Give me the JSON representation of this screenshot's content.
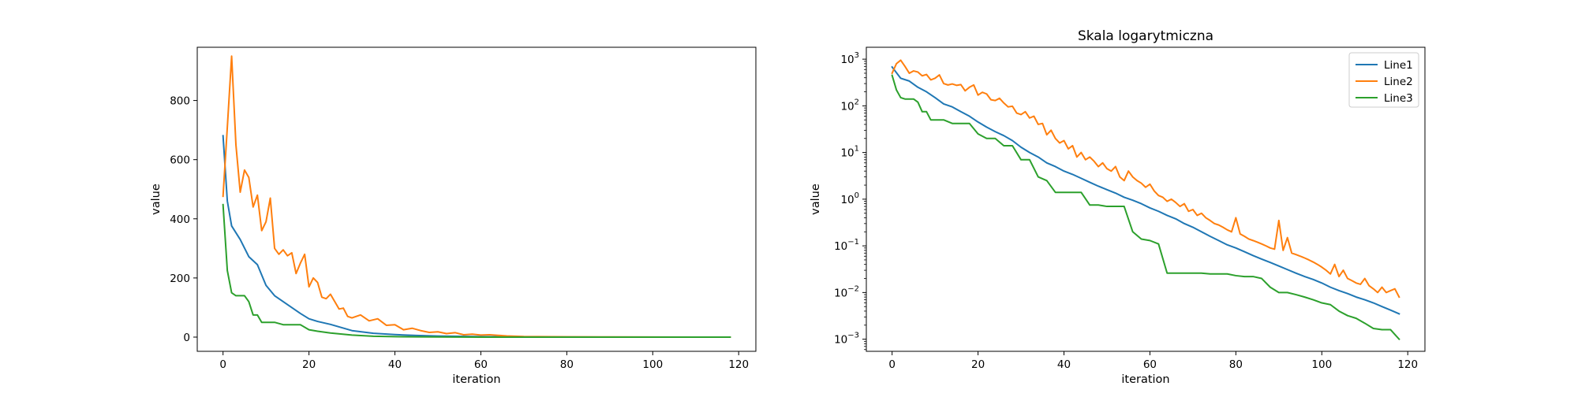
{
  "chart_data": [
    {
      "type": "line",
      "title": "",
      "xlabel": "iteration",
      "ylabel": "value",
      "xlim": [
        -6,
        124
      ],
      "ylim": [
        -48,
        980
      ],
      "xticks": [
        0,
        20,
        40,
        60,
        80,
        100,
        120
      ],
      "yticks": [
        0,
        200,
        400,
        600,
        800
      ],
      "yscale": "linear",
      "grid": false,
      "legend": false,
      "series": [
        {
          "name": "Line1",
          "color": "#1f77b4",
          "x": [
            0,
            1,
            2,
            4,
            6,
            8,
            10,
            12,
            14,
            16,
            18,
            20,
            22,
            25,
            30,
            35,
            40,
            45,
            50,
            55,
            60,
            70,
            80,
            90,
            100,
            110,
            118
          ],
          "y": [
            681,
            460,
            376,
            330,
            272,
            245,
            175,
            140,
            120,
            100,
            80,
            62,
            53,
            43,
            22,
            13,
            8.5,
            5.5,
            3.5,
            2.5,
            1.5,
            0.5,
            0.15,
            0.05,
            0.02,
            0.008,
            0.004
          ]
        },
        {
          "name": "Line2",
          "color": "#ff7f0e",
          "x": [
            0,
            1,
            2,
            3,
            4,
            5,
            6,
            7,
            8,
            9,
            10,
            11,
            12,
            13,
            14,
            15,
            16,
            17,
            18,
            19,
            20,
            21,
            22,
            23,
            24,
            25,
            26,
            27,
            28,
            29,
            30,
            32,
            34,
            36,
            38,
            40,
            42,
            44,
            46,
            48,
            50,
            52,
            54,
            56,
            58,
            60,
            62,
            64,
            66,
            70,
            80,
            90,
            100,
            110,
            118
          ],
          "y": [
            476,
            710,
            950,
            650,
            490,
            565,
            540,
            440,
            480,
            360,
            390,
            470,
            300,
            280,
            295,
            275,
            285,
            215,
            250,
            280,
            170,
            200,
            185,
            135,
            130,
            145,
            120,
            95,
            98,
            70,
            65,
            75,
            55,
            62,
            40,
            42,
            25,
            30,
            22,
            16,
            18,
            12,
            15,
            8,
            10,
            7,
            8,
            6,
            4,
            2,
            1,
            0.5,
            0.2,
            0.05,
            0.008
          ]
        },
        {
          "name": "Line3",
          "color": "#2ca02c",
          "x": [
            0,
            1,
            2,
            3,
            4,
            5,
            6,
            7,
            8,
            9,
            10,
            12,
            14,
            16,
            18,
            20,
            22,
            25,
            30,
            35,
            40,
            45,
            50,
            55,
            60,
            62,
            70,
            80,
            90,
            100,
            110,
            118
          ],
          "y": [
            448,
            225,
            150,
            140,
            140,
            140,
            120,
            75,
            75,
            50,
            50,
            50,
            42,
            42,
            42,
            25,
            20,
            14,
            7,
            3,
            1.5,
            0.8,
            0.6,
            0.3,
            0.1,
            0.025,
            0.024,
            0.02,
            0.01,
            0.005,
            0.002,
            0.001
          ]
        }
      ]
    },
    {
      "type": "line",
      "title": "Skala logarytmiczna",
      "xlabel": "iteration",
      "ylabel": "value",
      "xlim": [
        -6,
        124
      ],
      "ylim": [
        0.00055,
        1800
      ],
      "xticks": [
        0,
        20,
        40,
        60,
        80,
        100,
        120
      ],
      "yticks": [
        0.001,
        0.01,
        0.1,
        1,
        10,
        100,
        1000
      ],
      "ytick_labels": [
        {
          "base": "10",
          "exp": "−3"
        },
        {
          "base": "10",
          "exp": "−2"
        },
        {
          "base": "10",
          "exp": "−1"
        },
        {
          "base": "10",
          "exp": "0"
        },
        {
          "base": "10",
          "exp": "1"
        },
        {
          "base": "10",
          "exp": "2"
        },
        {
          "base": "10",
          "exp": "3"
        }
      ],
      "yscale": "log",
      "grid": false,
      "legend": true,
      "legend_position": "upper right",
      "series": [
        {
          "name": "Line1",
          "color": "#1f77b4",
          "x": [
            0,
            2,
            4,
            6,
            8,
            10,
            12,
            14,
            16,
            18,
            20,
            22,
            24,
            26,
            28,
            30,
            32,
            34,
            36,
            38,
            40,
            42,
            44,
            46,
            48,
            50,
            52,
            54,
            56,
            58,
            60,
            62,
            64,
            66,
            68,
            70,
            72,
            74,
            76,
            78,
            80,
            82,
            84,
            86,
            88,
            90,
            92,
            94,
            96,
            98,
            100,
            102,
            104,
            106,
            108,
            110,
            112,
            114,
            116,
            118
          ],
          "y": [
            680,
            390,
            340,
            250,
            200,
            150,
            110,
            95,
            75,
            60,
            45,
            35,
            28,
            23,
            18,
            13,
            10,
            8,
            6,
            5,
            4,
            3.4,
            2.8,
            2.3,
            1.9,
            1.6,
            1.35,
            1.1,
            0.95,
            0.8,
            0.65,
            0.55,
            0.45,
            0.38,
            0.3,
            0.25,
            0.2,
            0.16,
            0.13,
            0.105,
            0.09,
            0.075,
            0.062,
            0.052,
            0.044,
            0.037,
            0.031,
            0.026,
            0.022,
            0.019,
            0.016,
            0.013,
            0.011,
            0.0095,
            0.008,
            0.007,
            0.006,
            0.005,
            0.0042,
            0.0035
          ]
        },
        {
          "name": "Line2",
          "color": "#ff7f0e",
          "x": [
            0,
            1,
            2,
            3,
            4,
            5,
            6,
            7,
            8,
            9,
            10,
            11,
            12,
            13,
            14,
            15,
            16,
            17,
            18,
            19,
            20,
            21,
            22,
            23,
            24,
            25,
            26,
            27,
            28,
            29,
            30,
            31,
            32,
            33,
            34,
            35,
            36,
            37,
            38,
            39,
            40,
            41,
            42,
            43,
            44,
            45,
            46,
            47,
            48,
            49,
            50,
            51,
            52,
            53,
            54,
            55,
            56,
            57,
            58,
            59,
            60,
            61,
            62,
            63,
            64,
            65,
            66,
            67,
            68,
            69,
            70,
            71,
            72,
            73,
            74,
            75,
            76,
            77,
            78,
            79,
            80,
            81,
            82,
            83,
            84,
            85,
            86,
            87,
            88,
            89,
            90,
            91,
            92,
            93,
            94,
            95,
            96,
            97,
            98,
            99,
            100,
            101,
            102,
            103,
            104,
            105,
            106,
            107,
            108,
            109,
            110,
            111,
            112,
            113,
            114,
            115,
            116,
            117,
            118
          ],
          "y": [
            500,
            800,
            950,
            700,
            500,
            560,
            530,
            440,
            470,
            360,
            390,
            460,
            300,
            280,
            295,
            275,
            285,
            210,
            250,
            280,
            170,
            195,
            180,
            135,
            130,
            145,
            115,
            95,
            98,
            70,
            65,
            75,
            55,
            60,
            40,
            42,
            24,
            30,
            20,
            16,
            18,
            12,
            14,
            8,
            10,
            7,
            8,
            6.5,
            5,
            6,
            4.5,
            4,
            5,
            3,
            2.5,
            4,
            3,
            2.5,
            2.2,
            1.8,
            2.1,
            1.5,
            1.2,
            1.1,
            0.9,
            1.0,
            0.85,
            0.7,
            0.8,
            0.55,
            0.6,
            0.45,
            0.5,
            0.4,
            0.35,
            0.3,
            0.28,
            0.25,
            0.22,
            0.2,
            0.4,
            0.18,
            0.16,
            0.14,
            0.13,
            0.12,
            0.11,
            0.1,
            0.09,
            0.085,
            0.35,
            0.08,
            0.15,
            0.07,
            0.065,
            0.06,
            0.055,
            0.05,
            0.045,
            0.04,
            0.035,
            0.03,
            0.025,
            0.04,
            0.022,
            0.03,
            0.02,
            0.018,
            0.016,
            0.015,
            0.02,
            0.014,
            0.012,
            0.01,
            0.013,
            0.01,
            0.011,
            0.012,
            0.008
          ]
        },
        {
          "name": "Line3",
          "color": "#2ca02c",
          "x": [
            0,
            1,
            2,
            3,
            4,
            5,
            6,
            7,
            8,
            9,
            10,
            12,
            14,
            16,
            18,
            20,
            22,
            24,
            26,
            28,
            30,
            32,
            34,
            36,
            38,
            40,
            42,
            44,
            46,
            48,
            50,
            52,
            54,
            56,
            58,
            60,
            62,
            64,
            66,
            68,
            70,
            72,
            74,
            76,
            78,
            80,
            82,
            84,
            86,
            88,
            90,
            92,
            94,
            96,
            98,
            100,
            102,
            104,
            106,
            108,
            110,
            112,
            114,
            116,
            118
          ],
          "y": [
            450,
            220,
            150,
            140,
            140,
            140,
            120,
            75,
            75,
            50,
            50,
            50,
            42,
            42,
            42,
            25,
            20,
            20,
            14,
            14,
            7,
            7,
            3,
            2.5,
            1.4,
            1.4,
            1.4,
            1.4,
            0.75,
            0.75,
            0.7,
            0.7,
            0.7,
            0.2,
            0.14,
            0.13,
            0.11,
            0.026,
            0.026,
            0.026,
            0.026,
            0.026,
            0.025,
            0.025,
            0.025,
            0.023,
            0.022,
            0.022,
            0.02,
            0.013,
            0.01,
            0.01,
            0.009,
            0.008,
            0.007,
            0.006,
            0.0055,
            0.004,
            0.0032,
            0.0028,
            0.0022,
            0.0017,
            0.0016,
            0.0016,
            0.001
          ]
        }
      ]
    }
  ]
}
